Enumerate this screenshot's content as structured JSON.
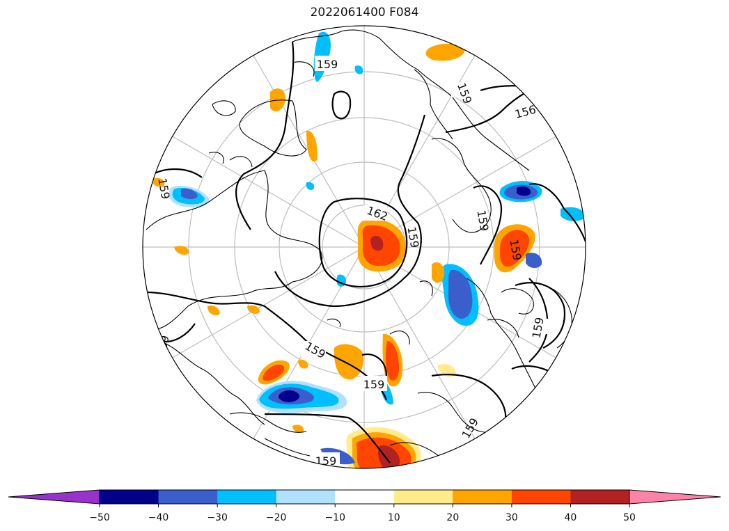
{
  "title": "2022061400 F084",
  "colorbar": {
    "extend": "both",
    "levels": [
      -50,
      -40,
      -30,
      -20,
      -10,
      10,
      20,
      30,
      40,
      50
    ],
    "tick_labels": [
      "−50",
      "−40",
      "−30",
      "−20",
      "−10",
      "10",
      "20",
      "30",
      "40",
      "50"
    ],
    "colors": [
      "#9932cc",
      "#00008b",
      "#3a5fcd",
      "#00bfff",
      "#b0e2ff",
      "#ffffff",
      "#ffec8b",
      "#ffa500",
      "#ff4500",
      "#b22222",
      "#ff83a8"
    ]
  },
  "contours": {
    "labels": [
      "159",
      "159",
      "156",
      "159",
      "159",
      "159",
      "162",
      "159",
      "159",
      "159",
      "159",
      "159",
      "159",
      "159"
    ]
  }
}
